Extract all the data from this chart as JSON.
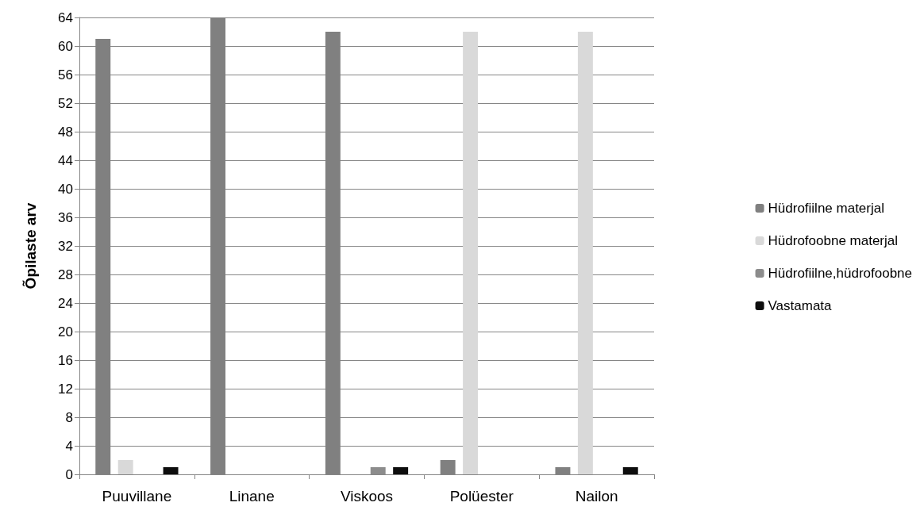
{
  "chart_data": {
    "type": "bar",
    "ylabel": "Õpilaste arv",
    "categories": [
      "Puuvillane",
      "Linane",
      "Viskoos",
      "Polüester",
      "Nailon"
    ],
    "series": [
      {
        "name": "Hüdrofiilne materjal",
        "color": "#808080",
        "values": [
          61,
          64,
          62,
          2,
          1
        ]
      },
      {
        "name": "Hüdrofoobne materjal",
        "color": "#d9d9d9",
        "values": [
          2,
          0,
          0,
          62,
          62
        ]
      },
      {
        "name": "Hüdrofiilne,hüdrofoobne",
        "color": "#8c8c8c",
        "values": [
          0,
          0,
          1,
          0,
          0
        ]
      },
      {
        "name": "Vastamata",
        "color": "#0d0d0d",
        "values": [
          1,
          0,
          1,
          0,
          1
        ]
      }
    ],
    "ylim": [
      0,
      64
    ],
    "yticks": [
      0,
      4,
      8,
      12,
      16,
      20,
      24,
      28,
      32,
      36,
      40,
      44,
      48,
      52,
      56,
      60,
      64
    ],
    "grid": "y",
    "legend": "right"
  }
}
